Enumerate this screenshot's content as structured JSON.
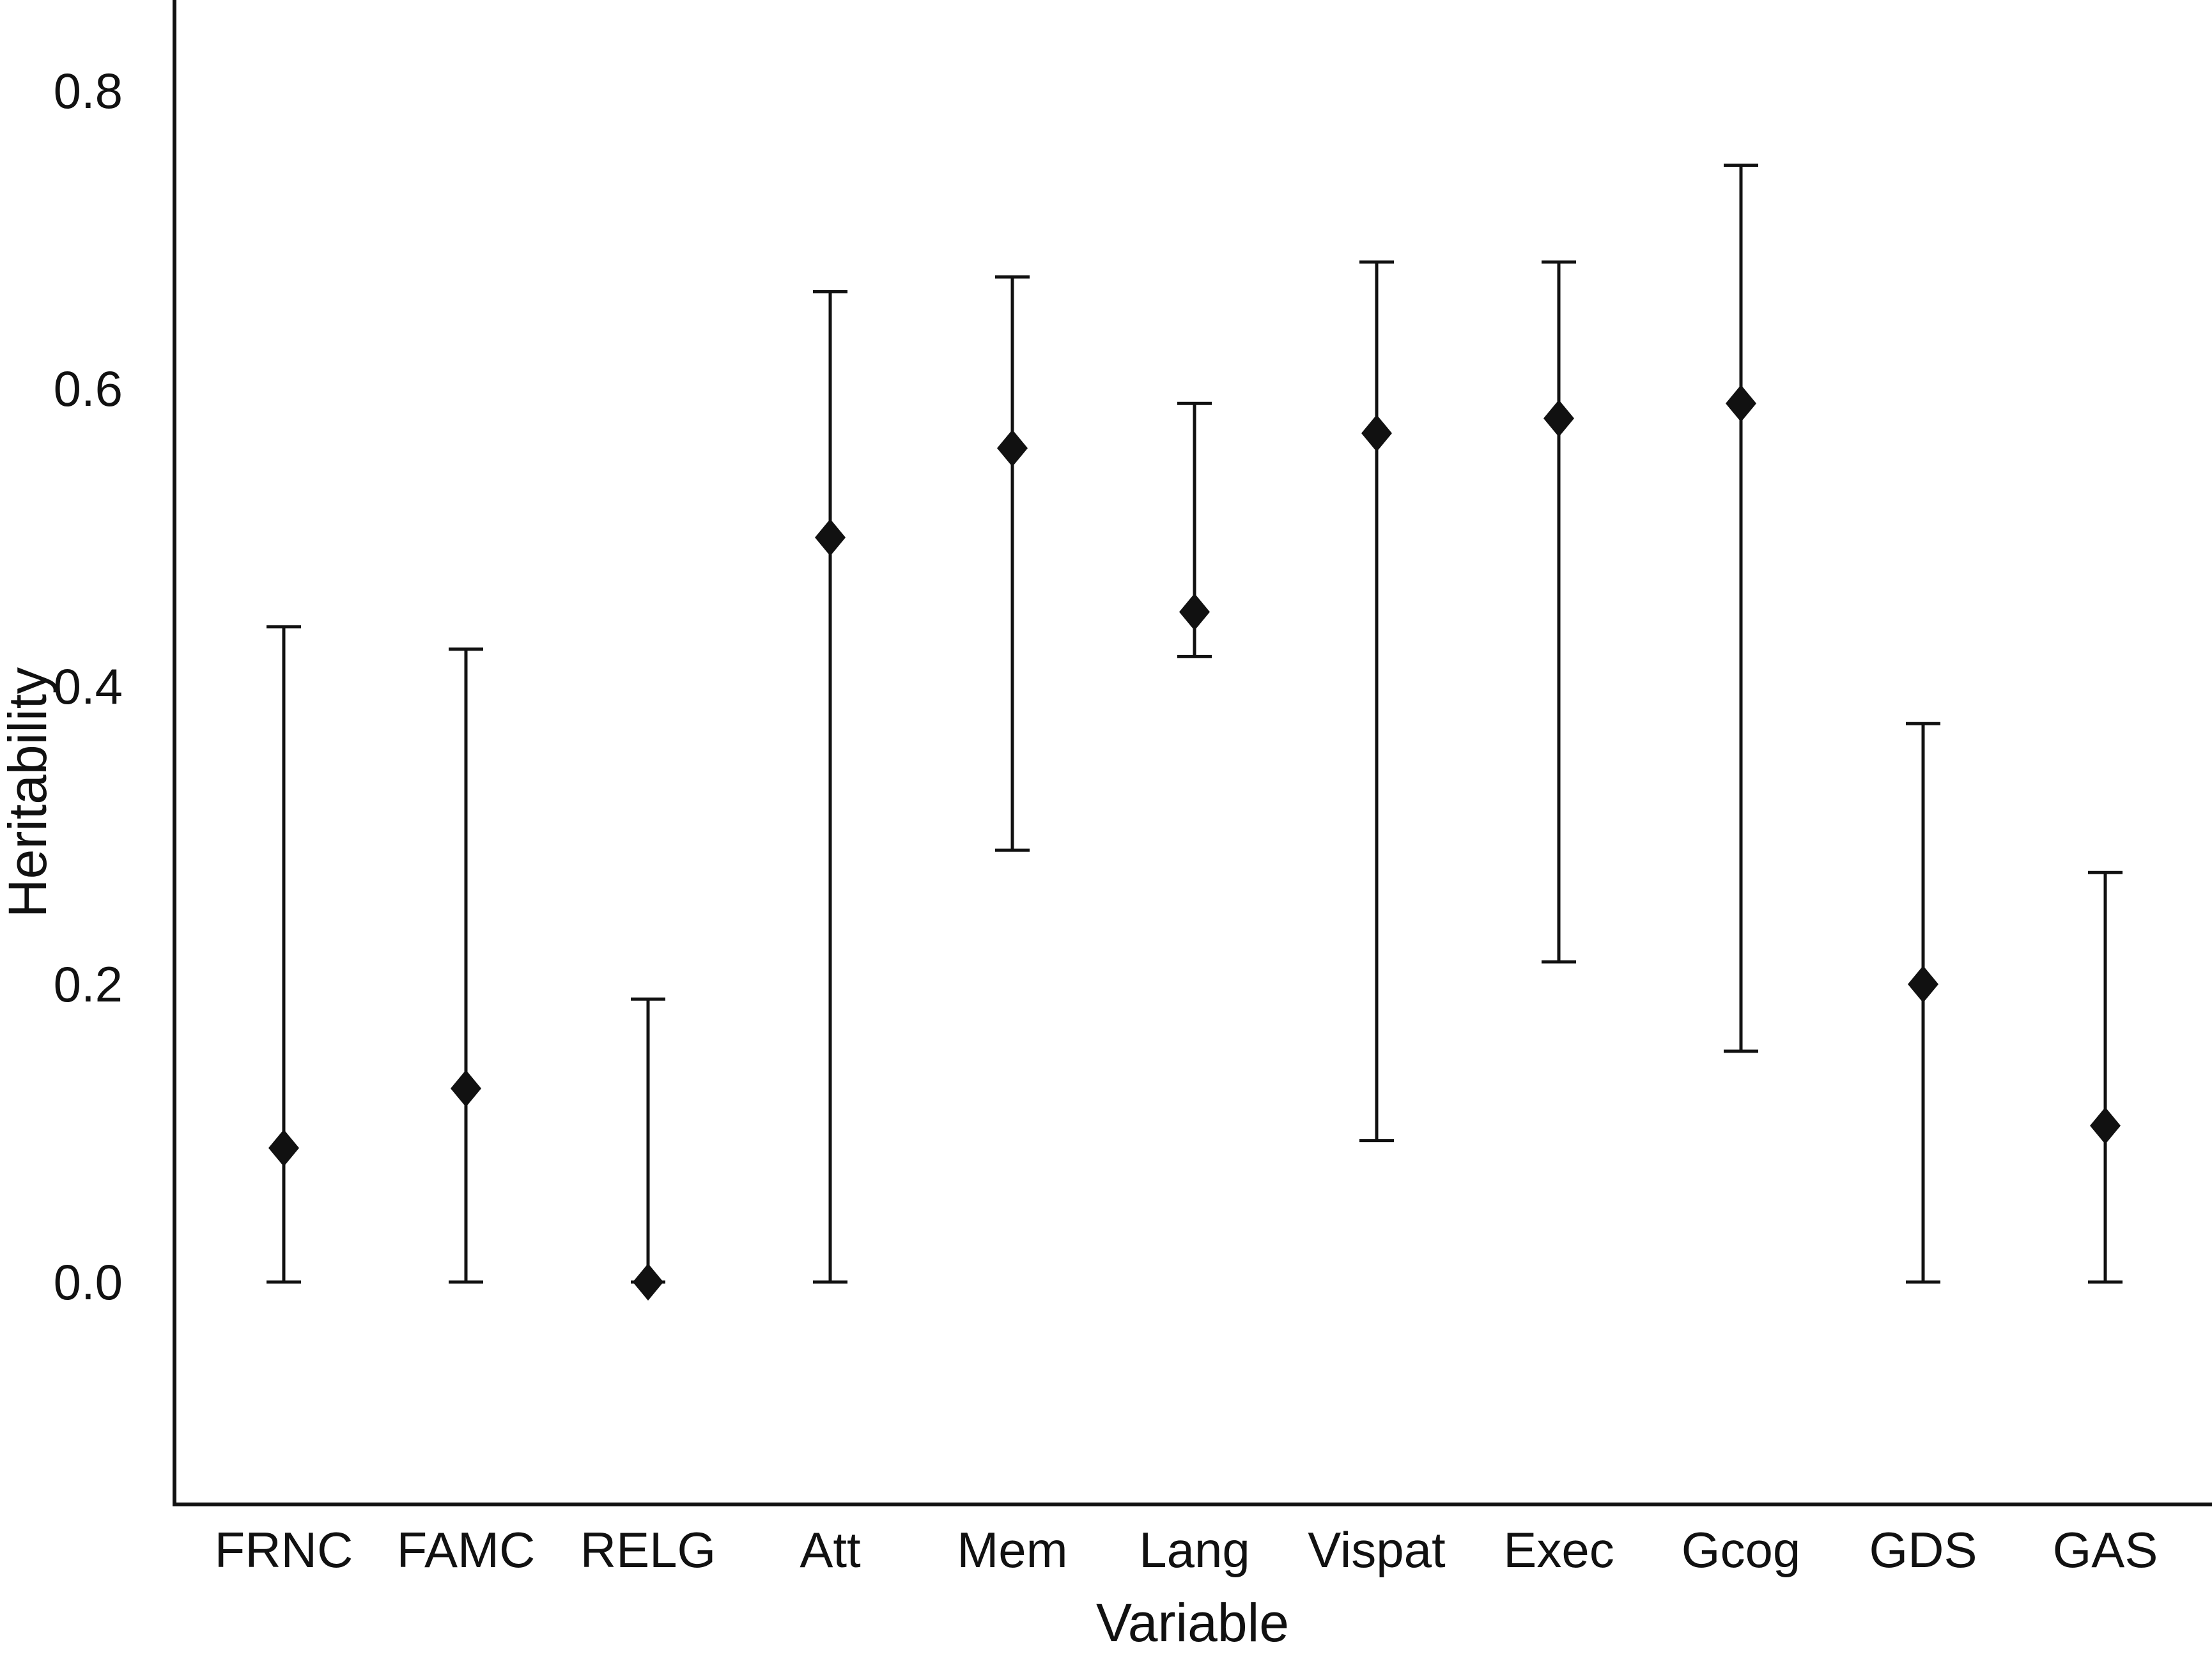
{
  "chart_data": {
    "type": "scatter",
    "subtype": "point-with-error-bars",
    "title": "",
    "xlabel": "Variable",
    "ylabel": "Heritability",
    "ylim": [
      -0.145,
      0.85
    ],
    "yticks": [
      0.0,
      0.2,
      0.4,
      0.6,
      0.8
    ],
    "ytick_labels": [
      "0.0",
      "0.2",
      "0.4",
      "0.6",
      "0.8"
    ],
    "grid": false,
    "legend": "none",
    "marker": "diamond",
    "colors": {
      "marker": "#111111",
      "error_bar": "#111111",
      "axis": "#111111",
      "background": "#ffffff"
    },
    "categories": [
      "FRNC",
      "FAMC",
      "RELG",
      "Att",
      "Mem",
      "Lang",
      "Vispat",
      "Exec",
      "Gcog",
      "GDS",
      "GAS"
    ],
    "series": [
      {
        "name": "Heritability",
        "values": [
          0.09,
          0.13,
          0.0,
          0.5,
          0.56,
          0.45,
          0.57,
          0.58,
          0.59,
          0.2,
          0.105
        ],
        "lower": [
          0.0,
          0.0,
          0.0,
          0.0,
          0.29,
          0.42,
          0.095,
          0.215,
          0.155,
          0.0,
          0.0
        ],
        "upper": [
          0.44,
          0.425,
          0.19,
          0.665,
          0.675,
          0.59,
          0.685,
          0.685,
          0.75,
          0.375,
          0.275
        ]
      }
    ]
  }
}
